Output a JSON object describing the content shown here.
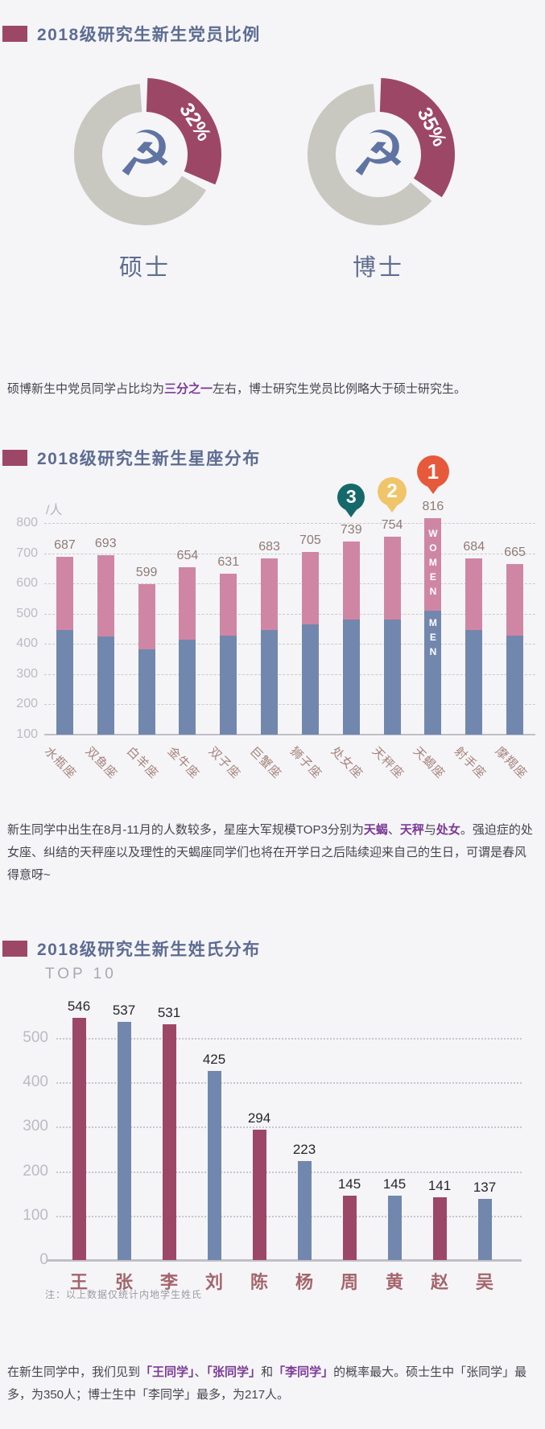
{
  "colors": {
    "accent_maroon": "#9d4766",
    "donut_gray": "#c9c8c0",
    "emblem_blue": "#5f74a2",
    "bar_blue": "#7287ae",
    "bar_pink": "#cf86a4",
    "badge1": "#e7593b",
    "badge2": "#f0c56a",
    "badge3": "#16696a"
  },
  "icons": {
    "hammer_sickle_glyph": "☭"
  },
  "sections": {
    "party": {
      "title": "2018级研究生新生党员比例",
      "paragraph": [
        {
          "t": "硕博新生中党员同学占比均为"
        },
        {
          "t": "三分之一",
          "hl": true
        },
        {
          "t": "左右，博士研究生党员比例略大于硕士研究生。"
        }
      ]
    },
    "zodiac": {
      "title": "2018级研究生新生星座分布",
      "unit_label": "/人",
      "paragraph": [
        {
          "t": "新生同学中出生在8月-11月的人数较多，星座大军规模TOP3分别为"
        },
        {
          "t": "天蝎",
          "hl": true
        },
        {
          "t": "、"
        },
        {
          "t": "天秤",
          "hl": true
        },
        {
          "t": "与"
        },
        {
          "t": "处女",
          "hl": true
        },
        {
          "t": "。强迫症的处女座、纠结的天秤座以及理性的天蝎座同学们也将在开学日之后陆续迎来自己的生日，可谓是春风得意呀~"
        }
      ]
    },
    "surname": {
      "title": "2018级研究生新生姓氏分布",
      "subtitle": "TOP 10",
      "note": "注：以上数据仅统计内地学生姓氏",
      "paragraph": [
        {
          "t": "在新生同学中，我们见到"
        },
        {
          "t": "「王同学」",
          "hl": true
        },
        {
          "t": "、"
        },
        {
          "t": "「张同学」",
          "hl": true
        },
        {
          "t": "和"
        },
        {
          "t": "「李同学」",
          "hl": true
        },
        {
          "t": "的概率最大。硕士生中「张同学」最多，为350人；博士生中「李同学」最多，为217人。"
        }
      ]
    }
  },
  "chart_data": [
    {
      "type": "pie",
      "variant": "donut-pair",
      "title": "2018级研究生新生党员比例",
      "center_icon": "hammer-sickle-icon",
      "items": [
        {
          "label": "硕士",
          "party_member_pct": 32,
          "pct_label": "32%"
        },
        {
          "label": "博士",
          "party_member_pct": 35,
          "pct_label": "35%"
        }
      ]
    },
    {
      "type": "bar",
      "subtype": "stacked",
      "title": "2018级研究生新生星座分布",
      "ylabel": "/人",
      "axis_min": 100,
      "yticks": [
        100,
        200,
        300,
        400,
        500,
        600,
        700,
        800
      ],
      "categories": [
        "水瓶座",
        "双鱼座",
        "白羊座",
        "金牛座",
        "双子座",
        "巨蟹座",
        "狮子座",
        "处女座",
        "天秤座",
        "天蝎座",
        "射手座",
        "摩羯座"
      ],
      "totals": [
        687,
        693,
        599,
        654,
        631,
        683,
        705,
        739,
        754,
        816,
        684,
        665
      ],
      "series": [
        {
          "name": "MEN",
          "estimated": true,
          "values": [
            445,
            425,
            382,
            415,
            428,
            447,
            465,
            480,
            480,
            510,
            447,
            428
          ]
        },
        {
          "name": "WOMEN",
          "estimated": true,
          "values": [
            242,
            268,
            217,
            239,
            203,
            236,
            240,
            259,
            274,
            306,
            237,
            237
          ]
        }
      ],
      "rank_badges": [
        {
          "rank": "1",
          "category": "天蝎座"
        },
        {
          "rank": "2",
          "category": "天秤座"
        },
        {
          "rank": "3",
          "category": "处女座"
        }
      ],
      "gender_label_bar": {
        "category": "天蝎座",
        "upper": "WOMEN",
        "lower": "MEN"
      }
    },
    {
      "type": "bar",
      "title": "2018级研究生新生姓氏分布",
      "subtitle": "TOP 10",
      "yticks": [
        0,
        100,
        200,
        300,
        400,
        500
      ],
      "categories": [
        "王",
        "张",
        "李",
        "刘",
        "陈",
        "杨",
        "周",
        "黄",
        "赵",
        "吴"
      ],
      "values": [
        546,
        537,
        531,
        425,
        294,
        223,
        145,
        145,
        141,
        137
      ],
      "note": "注：以上数据仅统计内地学生姓氏"
    }
  ]
}
